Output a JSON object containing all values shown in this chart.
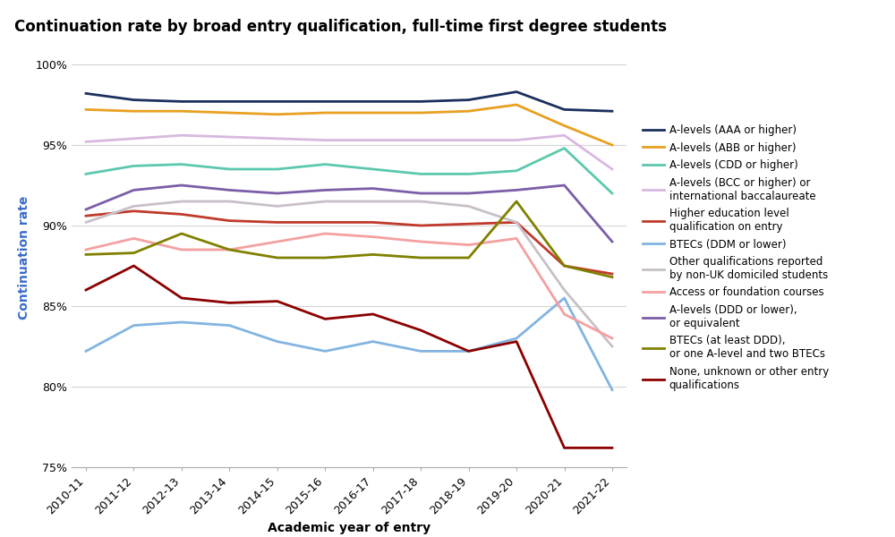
{
  "title": "Continuation rate by broad entry qualification, full-time first degree students",
  "xlabel": "Academic year of entry",
  "ylabel": "Continuation rate",
  "years": [
    "2010-11",
    "2011-12",
    "2012-13",
    "2013-14",
    "2014-15",
    "2015-16",
    "2016-17",
    "2017-18",
    "2018-19",
    "2019-20",
    "2020-21",
    "2021-22"
  ],
  "series": [
    {
      "label": "A-levels (AAA or higher)",
      "color": "#1a2f5e",
      "linewidth": 2.0,
      "values": [
        98.2,
        97.8,
        97.7,
        97.7,
        97.7,
        97.7,
        97.7,
        97.7,
        97.8,
        98.3,
        97.2,
        97.1
      ]
    },
    {
      "label": "A-levels (ABB or higher)",
      "color": "#e8a020",
      "linewidth": 2.0,
      "values": [
        97.2,
        97.1,
        97.1,
        97.0,
        96.9,
        97.0,
        97.0,
        97.0,
        97.1,
        97.5,
        96.2,
        95.0
      ]
    },
    {
      "label": "A-levels (CDD or higher)",
      "color": "#5bc8af",
      "linewidth": 2.0,
      "values": [
        93.2,
        93.7,
        93.8,
        93.5,
        93.5,
        93.8,
        93.5,
        93.2,
        93.2,
        93.4,
        94.8,
        92.0
      ]
    },
    {
      "label": "A-levels (BCC or higher) or\ninternational baccalaureate",
      "color": "#d9b8e0",
      "linewidth": 2.0,
      "values": [
        95.2,
        95.4,
        95.6,
        95.5,
        95.4,
        95.3,
        95.3,
        95.3,
        95.3,
        95.3,
        95.6,
        93.5
      ]
    },
    {
      "label": "Higher education level\nqualification on entry",
      "color": "#c0392b",
      "linewidth": 2.0,
      "values": [
        90.6,
        90.9,
        90.7,
        90.3,
        90.2,
        90.2,
        90.2,
        90.0,
        90.1,
        90.2,
        87.5,
        87.0
      ]
    },
    {
      "label": "BTECs (DDM or lower)",
      "color": "#82b4e0",
      "linewidth": 2.0,
      "values": [
        82.2,
        83.8,
        84.0,
        83.8,
        82.8,
        82.2,
        82.8,
        82.2,
        82.2,
        83.0,
        85.5,
        79.8
      ]
    },
    {
      "label": "Other qualifications reported\nby non-UK domiciled students",
      "color": "#c8c0c8",
      "linewidth": 2.0,
      "values": [
        90.2,
        91.2,
        91.5,
        91.5,
        91.2,
        91.5,
        91.5,
        91.5,
        91.2,
        90.2,
        86.0,
        82.5
      ]
    },
    {
      "label": "Access or foundation courses",
      "color": "#f4a0a0",
      "linewidth": 2.0,
      "values": [
        88.5,
        89.2,
        88.5,
        88.5,
        89.0,
        89.5,
        89.3,
        89.0,
        88.8,
        89.2,
        84.5,
        83.0
      ]
    },
    {
      "label": "A-levels (DDD or lower),\nor equivalent",
      "color": "#7b5ea7",
      "linewidth": 2.0,
      "values": [
        91.0,
        92.2,
        92.5,
        92.2,
        92.0,
        92.2,
        92.3,
        92.0,
        92.0,
        92.2,
        92.5,
        89.0
      ]
    },
    {
      "label": "BTECs (at least DDD),\nor one A-level and two BTECs",
      "color": "#808000",
      "linewidth": 2.0,
      "values": [
        88.2,
        88.3,
        89.5,
        88.5,
        88.0,
        88.0,
        88.2,
        88.0,
        88.0,
        91.5,
        87.5,
        86.8
      ]
    },
    {
      "label": "None, unknown or other entry\nqualifications",
      "color": "#8b0000",
      "linewidth": 2.0,
      "values": [
        86.0,
        87.5,
        85.5,
        85.2,
        85.3,
        84.2,
        84.5,
        83.5,
        82.2,
        82.8,
        76.2,
        76.2
      ]
    }
  ],
  "ylim": [
    75,
    101
  ],
  "yticks": [
    75,
    80,
    85,
    90,
    95,
    100
  ],
  "ytick_labels": [
    "75%",
    "80%",
    "85%",
    "90%",
    "95%",
    "100%"
  ],
  "background_color": "#ffffff",
  "grid_color": "#d5d5d5",
  "title_fontsize": 12,
  "label_fontsize": 10,
  "tick_fontsize": 9,
  "legend_fontsize": 8.5
}
